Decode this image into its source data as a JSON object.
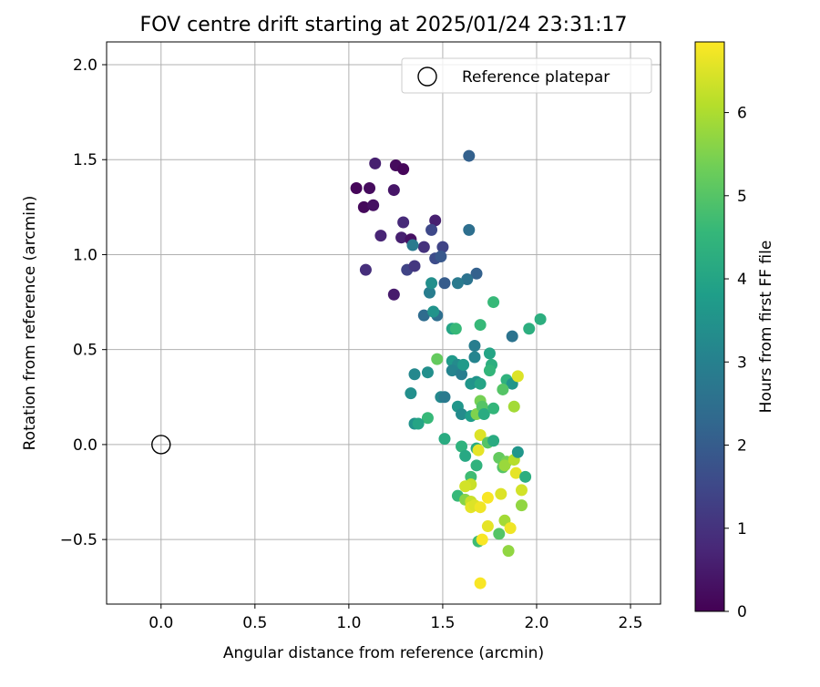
{
  "chart_data": {
    "type": "scatter",
    "title": "FOV centre drift starting at 2025/01/24 23:31:17",
    "xlabel": "Angular distance from reference (arcmin)",
    "ylabel": "Rotation from reference (arcmin)",
    "xlim": [
      -0.29,
      2.66
    ],
    "ylim": [
      -0.84,
      2.12
    ],
    "xticks": [
      0.0,
      0.5,
      1.0,
      1.5,
      2.0,
      2.5
    ],
    "xtick_labels": [
      "0.0",
      "0.5",
      "1.0",
      "1.5",
      "2.0",
      "2.5"
    ],
    "yticks": [
      -0.5,
      0.0,
      0.5,
      1.0,
      1.5,
      2.0
    ],
    "ytick_labels": [
      "−0.5",
      "0.0",
      "0.5",
      "1.0",
      "1.5",
      "2.0"
    ],
    "grid": true,
    "legend": {
      "position": "top-right",
      "entries": [
        {
          "label": "Reference platepar",
          "marker": "open-circle"
        }
      ]
    },
    "reference_point": {
      "x": 0.0,
      "y": 0.0
    },
    "colorbar": {
      "label": "Hours from first FF file",
      "colormap": "viridis",
      "range": [
        0,
        6.85
      ],
      "ticks": [
        0,
        1,
        2,
        3,
        4,
        5,
        6
      ],
      "tick_labels": [
        "0",
        "1",
        "2",
        "3",
        "4",
        "5",
        "6"
      ]
    },
    "colormap_stops": [
      "#440154",
      "#482878",
      "#3e4989",
      "#31688e",
      "#26828e",
      "#1f9e89",
      "#35b779",
      "#6ece58",
      "#b5de2b",
      "#fde725"
    ],
    "points": [
      {
        "x": 1.04,
        "y": 1.35,
        "c": 0.1
      },
      {
        "x": 1.11,
        "y": 1.35,
        "c": 0.2
      },
      {
        "x": 1.08,
        "y": 1.25,
        "c": 0.15
      },
      {
        "x": 1.13,
        "y": 1.26,
        "c": 0.3
      },
      {
        "x": 1.14,
        "y": 1.48,
        "c": 0.6
      },
      {
        "x": 1.25,
        "y": 1.47,
        "c": 0.2
      },
      {
        "x": 1.29,
        "y": 1.45,
        "c": 0.1
      },
      {
        "x": 1.24,
        "y": 1.34,
        "c": 0.4
      },
      {
        "x": 1.17,
        "y": 1.1,
        "c": 0.7
      },
      {
        "x": 1.29,
        "y": 1.17,
        "c": 0.8
      },
      {
        "x": 1.28,
        "y": 1.09,
        "c": 0.6
      },
      {
        "x": 1.33,
        "y": 1.08,
        "c": 0.3
      },
      {
        "x": 1.46,
        "y": 1.18,
        "c": 0.6
      },
      {
        "x": 1.09,
        "y": 0.92,
        "c": 0.9
      },
      {
        "x": 1.24,
        "y": 0.79,
        "c": 0.5
      },
      {
        "x": 1.31,
        "y": 0.92,
        "c": 1.4
      },
      {
        "x": 1.35,
        "y": 0.94,
        "c": 1.1
      },
      {
        "x": 1.4,
        "y": 1.04,
        "c": 1.0
      },
      {
        "x": 1.44,
        "y": 1.13,
        "c": 1.5
      },
      {
        "x": 1.5,
        "y": 1.04,
        "c": 1.4
      },
      {
        "x": 1.46,
        "y": 0.98,
        "c": 1.6
      },
      {
        "x": 1.49,
        "y": 0.99,
        "c": 1.9
      },
      {
        "x": 1.64,
        "y": 1.52,
        "c": 2.1
      },
      {
        "x": 1.64,
        "y": 1.13,
        "c": 2.5
      },
      {
        "x": 1.51,
        "y": 0.85,
        "c": 2.0
      },
      {
        "x": 1.68,
        "y": 0.9,
        "c": 2.1
      },
      {
        "x": 1.63,
        "y": 0.87,
        "c": 2.6
      },
      {
        "x": 1.58,
        "y": 0.85,
        "c": 2.8
      },
      {
        "x": 1.34,
        "y": 1.05,
        "c": 2.8
      },
      {
        "x": 1.43,
        "y": 0.8,
        "c": 2.9
      },
      {
        "x": 1.4,
        "y": 0.68,
        "c": 2.4
      },
      {
        "x": 1.47,
        "y": 0.68,
        "c": 2.5
      },
      {
        "x": 1.44,
        "y": 0.85,
        "c": 3.4
      },
      {
        "x": 1.45,
        "y": 0.7,
        "c": 3.5
      },
      {
        "x": 1.55,
        "y": 0.61,
        "c": 4.0
      },
      {
        "x": 1.57,
        "y": 0.61,
        "c": 4.6
      },
      {
        "x": 1.7,
        "y": 0.63,
        "c": 4.6
      },
      {
        "x": 1.77,
        "y": 0.75,
        "c": 4.6
      },
      {
        "x": 1.87,
        "y": 0.57,
        "c": 2.6
      },
      {
        "x": 1.96,
        "y": 0.61,
        "c": 4.3
      },
      {
        "x": 2.02,
        "y": 0.66,
        "c": 4.3
      },
      {
        "x": 1.67,
        "y": 0.52,
        "c": 2.9
      },
      {
        "x": 1.75,
        "y": 0.48,
        "c": 4.0
      },
      {
        "x": 1.67,
        "y": 0.46,
        "c": 3.1
      },
      {
        "x": 1.47,
        "y": 0.45,
        "c": 5.2
      },
      {
        "x": 1.55,
        "y": 0.44,
        "c": 3.7
      },
      {
        "x": 1.58,
        "y": 0.42,
        "c": 3.3
      },
      {
        "x": 1.55,
        "y": 0.39,
        "c": 3.1
      },
      {
        "x": 1.6,
        "y": 0.37,
        "c": 2.9
      },
      {
        "x": 1.61,
        "y": 0.42,
        "c": 3.7
      },
      {
        "x": 1.76,
        "y": 0.42,
        "c": 4.3
      },
      {
        "x": 1.75,
        "y": 0.39,
        "c": 4.5
      },
      {
        "x": 1.42,
        "y": 0.38,
        "c": 3.4
      },
      {
        "x": 1.35,
        "y": 0.37,
        "c": 3.2
      },
      {
        "x": 1.65,
        "y": 0.32,
        "c": 3.6
      },
      {
        "x": 1.68,
        "y": 0.33,
        "c": 3.5
      },
      {
        "x": 1.7,
        "y": 0.32,
        "c": 4.0
      },
      {
        "x": 1.84,
        "y": 0.34,
        "c": 4.4
      },
      {
        "x": 1.87,
        "y": 0.32,
        "c": 3.6
      },
      {
        "x": 1.82,
        "y": 0.29,
        "c": 5.0
      },
      {
        "x": 1.9,
        "y": 0.36,
        "c": 6.5
      },
      {
        "x": 1.33,
        "y": 0.27,
        "c": 3.4
      },
      {
        "x": 1.49,
        "y": 0.25,
        "c": 3.2
      },
      {
        "x": 1.51,
        "y": 0.25,
        "c": 2.8
      },
      {
        "x": 1.58,
        "y": 0.2,
        "c": 3.6
      },
      {
        "x": 1.6,
        "y": 0.16,
        "c": 3.3
      },
      {
        "x": 1.65,
        "y": 0.15,
        "c": 3.8
      },
      {
        "x": 1.68,
        "y": 0.16,
        "c": 5.5
      },
      {
        "x": 1.7,
        "y": 0.23,
        "c": 5.4
      },
      {
        "x": 1.71,
        "y": 0.2,
        "c": 5.0
      },
      {
        "x": 1.72,
        "y": 0.16,
        "c": 4.2
      },
      {
        "x": 1.77,
        "y": 0.19,
        "c": 4.5
      },
      {
        "x": 1.88,
        "y": 0.2,
        "c": 5.9
      },
      {
        "x": 1.42,
        "y": 0.14,
        "c": 4.6
      },
      {
        "x": 1.35,
        "y": 0.11,
        "c": 3.5
      },
      {
        "x": 1.37,
        "y": 0.11,
        "c": 4.0
      },
      {
        "x": 1.51,
        "y": 0.03,
        "c": 4.2
      },
      {
        "x": 1.6,
        "y": -0.01,
        "c": 4.4
      },
      {
        "x": 1.62,
        "y": -0.06,
        "c": 4.1
      },
      {
        "x": 1.68,
        "y": -0.02,
        "c": 4.2
      },
      {
        "x": 1.7,
        "y": 0.05,
        "c": 6.5
      },
      {
        "x": 1.69,
        "y": -0.03,
        "c": 6.6
      },
      {
        "x": 1.74,
        "y": 0.01,
        "c": 5.0
      },
      {
        "x": 1.77,
        "y": 0.02,
        "c": 4.2
      },
      {
        "x": 1.8,
        "y": -0.07,
        "c": 5.2
      },
      {
        "x": 1.84,
        "y": -0.09,
        "c": 5.4
      },
      {
        "x": 1.82,
        "y": -0.12,
        "c": 5.0
      },
      {
        "x": 1.83,
        "y": -0.11,
        "c": 5.8
      },
      {
        "x": 1.88,
        "y": -0.08,
        "c": 6.1
      },
      {
        "x": 1.9,
        "y": -0.04,
        "c": 3.6
      },
      {
        "x": 1.89,
        "y": -0.15,
        "c": 6.6
      },
      {
        "x": 1.94,
        "y": -0.17,
        "c": 4.3
      },
      {
        "x": 1.68,
        "y": -0.11,
        "c": 4.4
      },
      {
        "x": 1.65,
        "y": -0.17,
        "c": 4.7
      },
      {
        "x": 1.65,
        "y": -0.21,
        "c": 6.3
      },
      {
        "x": 1.62,
        "y": -0.22,
        "c": 6.4
      },
      {
        "x": 1.58,
        "y": -0.27,
        "c": 4.6
      },
      {
        "x": 1.62,
        "y": -0.29,
        "c": 5.6
      },
      {
        "x": 1.65,
        "y": -0.3,
        "c": 6.3
      },
      {
        "x": 1.65,
        "y": -0.33,
        "c": 6.6
      },
      {
        "x": 1.67,
        "y": -0.32,
        "c": 6.5
      },
      {
        "x": 1.7,
        "y": -0.33,
        "c": 6.7
      },
      {
        "x": 1.74,
        "y": -0.28,
        "c": 6.8
      },
      {
        "x": 1.81,
        "y": -0.26,
        "c": 6.5
      },
      {
        "x": 1.92,
        "y": -0.24,
        "c": 6.4
      },
      {
        "x": 1.92,
        "y": -0.32,
        "c": 5.7
      },
      {
        "x": 1.83,
        "y": -0.4,
        "c": 5.9
      },
      {
        "x": 1.74,
        "y": -0.43,
        "c": 6.6
      },
      {
        "x": 1.8,
        "y": -0.47,
        "c": 5.0
      },
      {
        "x": 1.86,
        "y": -0.44,
        "c": 6.7
      },
      {
        "x": 1.69,
        "y": -0.51,
        "c": 4.7
      },
      {
        "x": 1.71,
        "y": -0.5,
        "c": 6.8
      },
      {
        "x": 1.85,
        "y": -0.56,
        "c": 5.7
      },
      {
        "x": 1.7,
        "y": -0.73,
        "c": 6.8
      }
    ]
  }
}
